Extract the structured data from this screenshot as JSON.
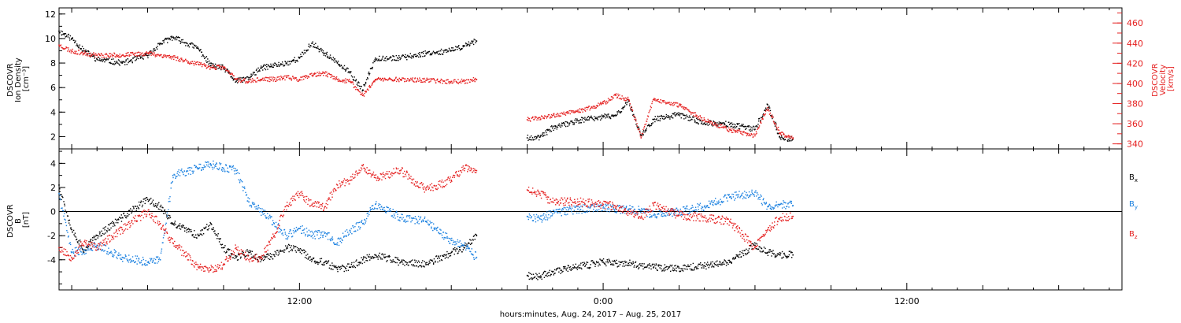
{
  "xlabel": "hours:minutes, Aug. 24, 2017 – Aug. 25, 2017",
  "x_ticks": [
    "12:00",
    "0:00",
    "12:00"
  ],
  "chart_data": [
    {
      "type": "scatter",
      "xlim": [
        "2017-08-24T02:30",
        "2017-08-25T20:30"
      ],
      "ylim": [
        1,
        12.5
      ],
      "ylim_right": [
        335,
        475
      ],
      "ylabel_lines": [
        "DSCOVR",
        "Ion Density",
        "[cm⁻³]"
      ],
      "ylabel_right_lines": [
        "DSCOVR",
        "Velocity",
        "[km/s]"
      ],
      "y_ticks": [
        "2",
        "4",
        "6",
        "8",
        "10",
        "12"
      ],
      "y_right_ticks": [
        "340",
        "360",
        "380",
        "400",
        "420",
        "440",
        "460"
      ],
      "series": [
        {
          "axis": "left",
          "color": "#000000",
          "x": [
            "2017-08-24T02:30",
            "2017-08-24T03:00",
            "2017-08-24T03:30",
            "2017-08-24T04:00",
            "2017-08-24T05:00",
            "2017-08-24T06:00",
            "2017-08-24T06:30",
            "2017-08-24T07:00",
            "2017-08-24T08:00",
            "2017-08-24T08:30",
            "2017-08-24T09:00",
            "2017-08-24T09:30",
            "2017-08-24T10:00",
            "2017-08-24T10:30",
            "2017-08-24T11:00",
            "2017-08-24T11:30",
            "2017-08-24T12:00",
            "2017-08-24T12:30",
            "2017-08-24T13:00",
            "2017-08-24T13:30",
            "2017-08-24T14:00",
            "2017-08-24T14:30",
            "2017-08-24T15:00",
            "2017-08-24T16:00",
            "2017-08-24T17:00",
            "2017-08-24T18:00",
            "2017-08-24T18:30",
            "2017-08-24T19:00",
            "2017-08-24T19:30",
            "2017-08-24T21:00",
            "2017-08-24T21:30",
            "2017-08-24T22:00",
            "2017-08-24T23:00",
            "2017-08-25T00:00",
            "2017-08-25T00:30",
            "2017-08-25T01:00",
            "2017-08-25T01:30",
            "2017-08-25T02:00",
            "2017-08-25T03:00",
            "2017-08-25T04:00",
            "2017-08-25T05:00",
            "2017-08-25T06:00",
            "2017-08-25T06:30",
            "2017-08-25T07:00",
            "2017-08-25T07:30"
          ],
          "y": [
            10.6,
            10.0,
            9.0,
            8.3,
            8.0,
            8.6,
            9.6,
            10.1,
            9.2,
            7.8,
            7.6,
            6.5,
            6.8,
            7.6,
            7.8,
            8.0,
            8.4,
            9.6,
            8.8,
            8.0,
            7.2,
            5.8,
            8.4,
            8.4,
            8.8,
            9.0,
            9.4,
            9.8,
            null,
            1.9,
            1.95,
            2.7,
            3.3,
            3.6,
            3.7,
            4.9,
            2.1,
            3.4,
            3.8,
            3.1,
            3.0,
            2.6,
            4.6,
            1.9,
            1.8
          ],
          "values": [
            10.6,
            10.0,
            9.0,
            8.3,
            8.0,
            8.6,
            9.6,
            10.1,
            9.2,
            7.8,
            7.6,
            6.5,
            6.8,
            7.6,
            7.8,
            8.0,
            8.4,
            9.6,
            8.8,
            8.0,
            7.2,
            5.8,
            8.4,
            8.4,
            8.8,
            9.0,
            9.4,
            9.8,
            null,
            1.9,
            1.95,
            2.7,
            3.3,
            3.6,
            3.7,
            4.9,
            2.1,
            3.4,
            3.8,
            3.1,
            3.0,
            2.6,
            4.6,
            1.9,
            1.8
          ]
        },
        {
          "axis": "right",
          "color": "#e52020",
          "x": [
            "2017-08-24T02:30",
            "2017-08-24T03:00",
            "2017-08-24T03:30",
            "2017-08-24T04:00",
            "2017-08-24T05:00",
            "2017-08-24T06:00",
            "2017-08-24T06:30",
            "2017-08-24T07:00",
            "2017-08-24T08:00",
            "2017-08-24T08:30",
            "2017-08-24T09:00",
            "2017-08-24T09:30",
            "2017-08-24T10:00",
            "2017-08-24T10:30",
            "2017-08-24T11:00",
            "2017-08-24T11:30",
            "2017-08-24T12:00",
            "2017-08-24T12:30",
            "2017-08-24T13:00",
            "2017-08-24T13:30",
            "2017-08-24T14:00",
            "2017-08-24T14:30",
            "2017-08-24T15:00",
            "2017-08-24T16:00",
            "2017-08-24T17:00",
            "2017-08-24T18:00",
            "2017-08-24T18:30",
            "2017-08-24T19:00",
            "2017-08-24T19:30",
            "2017-08-24T21:00",
            "2017-08-24T21:30",
            "2017-08-24T22:00",
            "2017-08-24T23:00",
            "2017-08-25T00:00",
            "2017-08-25T00:30",
            "2017-08-25T01:00",
            "2017-08-25T01:30",
            "2017-08-25T02:00",
            "2017-08-25T03:00",
            "2017-08-25T04:00",
            "2017-08-25T05:00",
            "2017-08-25T06:00",
            "2017-08-25T06:30",
            "2017-08-25T07:00",
            "2017-08-25T07:30"
          ],
          "y": [
            438,
            432,
            430,
            428,
            428,
            430,
            428,
            426,
            419,
            416,
            416,
            404,
            402,
            404,
            404,
            406,
            404,
            408,
            410,
            404,
            402,
            388,
            404,
            404,
            403,
            402,
            402,
            404,
            null,
            364,
            366,
            368,
            372,
            380,
            388,
            384,
            346,
            384,
            378,
            364,
            354,
            348,
            376,
            350,
            346
          ],
          "values": [
            438,
            432,
            430,
            428,
            428,
            430,
            428,
            426,
            419,
            416,
            416,
            404,
            402,
            404,
            404,
            406,
            404,
            408,
            410,
            404,
            402,
            388,
            404,
            404,
            403,
            402,
            402,
            404,
            null,
            364,
            366,
            368,
            372,
            380,
            388,
            384,
            346,
            384,
            378,
            364,
            354,
            348,
            376,
            350,
            346
          ]
        }
      ]
    },
    {
      "type": "scatter",
      "xlim": [
        "2017-08-24T02:30",
        "2017-08-25T20:30"
      ],
      "ylim": [
        -6.5,
        5.2
      ],
      "ylabel_lines": [
        "DSCOVR",
        "B",
        "[nT]"
      ],
      "y_ticks": [
        "-4",
        "-2",
        "0",
        "2",
        "4"
      ],
      "series": [
        {
          "name": "Bx",
          "color": "#000000",
          "x": [
            "2017-08-24T02:30",
            "2017-08-24T03:00",
            "2017-08-24T03:30",
            "2017-08-24T04:00",
            "2017-08-24T05:00",
            "2017-08-24T06:00",
            "2017-08-24T06:30",
            "2017-08-24T07:00",
            "2017-08-24T08:00",
            "2017-08-24T08:30",
            "2017-08-24T09:00",
            "2017-08-24T09:30",
            "2017-08-24T10:00",
            "2017-08-24T10:30",
            "2017-08-24T11:00",
            "2017-08-24T11:30",
            "2017-08-24T12:00",
            "2017-08-24T12:30",
            "2017-08-24T13:00",
            "2017-08-24T13:30",
            "2017-08-24T14:00",
            "2017-08-24T14:30",
            "2017-08-24T15:00",
            "2017-08-24T16:00",
            "2017-08-24T17:00",
            "2017-08-24T18:00",
            "2017-08-24T18:30",
            "2017-08-24T19:00",
            "2017-08-24T19:30",
            "2017-08-24T21:00",
            "2017-08-24T21:30",
            "2017-08-24T22:00",
            "2017-08-24T23:00",
            "2017-08-25T00:00",
            "2017-08-25T00:30",
            "2017-08-25T01:00",
            "2017-08-25T01:30",
            "2017-08-25T02:00",
            "2017-08-25T03:00",
            "2017-08-25T04:00",
            "2017-08-25T05:00",
            "2017-08-25T06:00",
            "2017-08-25T06:30",
            "2017-08-25T07:00",
            "2017-08-25T07:30"
          ],
          "y": [
            2.2,
            -1.5,
            -3.2,
            -2.0,
            -0.5,
            1.0,
            0.4,
            -1.0,
            -2.0,
            -1.0,
            -3.0,
            -3.8,
            -3.4,
            -4.0,
            -3.6,
            -3.0,
            -3.2,
            -4.0,
            -4.2,
            -4.8,
            -4.6,
            -4.0,
            -3.6,
            -4.2,
            -4.4,
            -3.4,
            -3.0,
            -2.0,
            null,
            -5.3,
            -5.4,
            -5.0,
            -4.6,
            -4.2,
            -4.3,
            -4.3,
            -4.5,
            -4.6,
            -4.7,
            -4.5,
            -4.2,
            -2.8,
            -3.4,
            -3.6,
            -3.6
          ],
          "values": [
            2.2,
            -1.5,
            -3.2,
            -2.0,
            -0.5,
            1.0,
            0.4,
            -1.0,
            -2.0,
            -1.0,
            -3.0,
            -3.8,
            -3.4,
            -4.0,
            -3.6,
            -3.0,
            -3.2,
            -4.0,
            -4.2,
            -4.8,
            -4.6,
            -4.0,
            -3.6,
            -4.2,
            -4.4,
            -3.4,
            -3.0,
            -2.0,
            null,
            -5.3,
            -5.4,
            -5.0,
            -4.6,
            -4.2,
            -4.3,
            -4.3,
            -4.5,
            -4.6,
            -4.7,
            -4.5,
            -4.2,
            -2.8,
            -3.4,
            -3.6,
            -3.6
          ]
        },
        {
          "name": "By",
          "color": "#1a80e0",
          "x": [
            "2017-08-24T02:30",
            "2017-08-24T03:00",
            "2017-08-24T03:30",
            "2017-08-24T04:00",
            "2017-08-24T05:00",
            "2017-08-24T06:00",
            "2017-08-24T06:30",
            "2017-08-24T07:00",
            "2017-08-24T08:00",
            "2017-08-24T08:30",
            "2017-08-24T09:00",
            "2017-08-24T09:30",
            "2017-08-24T10:00",
            "2017-08-24T10:30",
            "2017-08-24T11:00",
            "2017-08-24T11:30",
            "2017-08-24T12:00",
            "2017-08-24T12:30",
            "2017-08-24T13:00",
            "2017-08-24T13:30",
            "2017-08-24T14:00",
            "2017-08-24T14:30",
            "2017-08-24T15:00",
            "2017-08-24T16:00",
            "2017-08-24T17:00",
            "2017-08-24T18:00",
            "2017-08-24T18:30",
            "2017-08-24T19:00",
            "2017-08-24T19:30",
            "2017-08-24T21:00",
            "2017-08-24T21:30",
            "2017-08-24T22:00",
            "2017-08-24T23:00",
            "2017-08-25T00:00",
            "2017-08-25T00:30",
            "2017-08-25T01:00",
            "2017-08-25T01:30",
            "2017-08-25T02:00",
            "2017-08-25T03:00",
            "2017-08-25T04:00",
            "2017-08-25T05:00",
            "2017-08-25T06:00",
            "2017-08-25T06:30",
            "2017-08-25T07:00",
            "2017-08-25T07:30"
          ],
          "y": [
            1.5,
            -3.4,
            -3.2,
            -2.8,
            -3.8,
            -4.2,
            -4.0,
            3.0,
            3.6,
            3.9,
            3.6,
            3.4,
            0.8,
            0.0,
            -1.0,
            -2.0,
            -1.4,
            -2.0,
            -1.8,
            -2.6,
            -1.6,
            -1.0,
            0.6,
            -0.5,
            -0.8,
            -2.4,
            -2.8,
            -3.8,
            null,
            -0.4,
            -0.6,
            -0.2,
            0.2,
            0.3,
            0.2,
            0.2,
            0.1,
            -0.3,
            0.0,
            0.4,
            1.2,
            1.6,
            0.4,
            0.6,
            0.5
          ],
          "values": [
            1.5,
            -3.4,
            -3.2,
            -2.8,
            -3.8,
            -4.2,
            -4.0,
            3.0,
            3.6,
            3.9,
            3.6,
            3.4,
            0.8,
            0.0,
            -1.0,
            -2.0,
            -1.4,
            -2.0,
            -1.8,
            -2.6,
            -1.6,
            -1.0,
            0.6,
            -0.5,
            -0.8,
            -2.4,
            -2.8,
            -3.8,
            null,
            -0.4,
            -0.6,
            -0.2,
            0.2,
            0.3,
            0.2,
            0.2,
            0.1,
            -0.3,
            0.0,
            0.4,
            1.2,
            1.6,
            0.4,
            0.6,
            0.5
          ]
        },
        {
          "name": "Bz",
          "color": "#e52020",
          "x": [
            "2017-08-24T02:30",
            "2017-08-24T03:00",
            "2017-08-24T03:30",
            "2017-08-24T04:00",
            "2017-08-24T05:00",
            "2017-08-24T06:00",
            "2017-08-24T06:30",
            "2017-08-24T07:00",
            "2017-08-24T08:00",
            "2017-08-24T08:30",
            "2017-08-24T09:00",
            "2017-08-24T09:30",
            "2017-08-24T10:00",
            "2017-08-24T10:30",
            "2017-08-24T11:00",
            "2017-08-24T11:30",
            "2017-08-24T12:00",
            "2017-08-24T12:30",
            "2017-08-24T13:00",
            "2017-08-24T13:30",
            "2017-08-24T14:00",
            "2017-08-24T14:30",
            "2017-08-24T15:00",
            "2017-08-24T16:00",
            "2017-08-24T17:00",
            "2017-08-24T18:00",
            "2017-08-24T18:30",
            "2017-08-24T19:00",
            "2017-08-24T19:30",
            "2017-08-24T21:00",
            "2017-08-24T21:30",
            "2017-08-24T22:00",
            "2017-08-24T23:00",
            "2017-08-25T00:00",
            "2017-08-25T00:30",
            "2017-08-25T01:00",
            "2017-08-25T01:30",
            "2017-08-25T02:00",
            "2017-08-25T03:00",
            "2017-08-25T04:00",
            "2017-08-25T05:00",
            "2017-08-25T06:00",
            "2017-08-25T06:30",
            "2017-08-25T07:00",
            "2017-08-25T07:30"
          ],
          "y": [
            -3.0,
            -3.8,
            -2.5,
            -3.0,
            -1.5,
            0.0,
            -1.0,
            -2.6,
            -4.6,
            -4.8,
            -4.4,
            -3.0,
            -4.0,
            -3.8,
            -2.0,
            0.5,
            1.5,
            0.6,
            0.4,
            2.2,
            2.6,
            3.8,
            2.8,
            3.4,
            1.8,
            2.6,
            3.6,
            3.4,
            null,
            1.8,
            1.5,
            0.8,
            0.8,
            0.6,
            0.4,
            0.0,
            -0.5,
            0.5,
            -0.3,
            -0.5,
            -0.8,
            -3.0,
            -1.5,
            -0.5,
            -0.4
          ],
          "values": [
            -3.0,
            -3.8,
            -2.5,
            -3.0,
            -1.5,
            0.0,
            -1.0,
            -2.6,
            -4.6,
            -4.8,
            -4.4,
            -3.0,
            -4.0,
            -3.8,
            -2.0,
            0.5,
            1.5,
            0.6,
            0.4,
            2.2,
            2.6,
            3.8,
            2.8,
            3.4,
            1.8,
            2.6,
            3.6,
            3.4,
            null,
            1.8,
            1.5,
            0.8,
            0.8,
            0.6,
            0.4,
            0.0,
            -0.5,
            0.5,
            -0.3,
            -0.5,
            -0.8,
            -3.0,
            -1.5,
            -0.5,
            -0.4
          ]
        }
      ],
      "legend": [
        {
          "label": "B",
          "sub": "x",
          "color": "#000000"
        },
        {
          "label": "B",
          "sub": "y",
          "color": "#1a80e0"
        },
        {
          "label": "B",
          "sub": "z",
          "color": "#e52020"
        }
      ],
      "legend_position": "right"
    }
  ]
}
